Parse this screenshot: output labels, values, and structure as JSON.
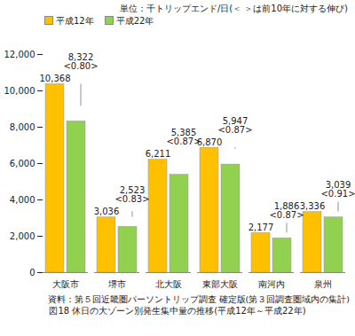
{
  "chart_data": {
    "type": "bar",
    "title": "図18 休日の大ゾーン別発生集中量の推移(平成12年～平成22年)",
    "subtitle": "単位：千トリップエンド/日(＜ ＞は前10年に対する伸び)",
    "caption": "資料：第５回近畿圏パーソントリップ調査 確定版(第３回調査圏域内の集計)",
    "categories": [
      "大阪市",
      "堺市",
      "北大阪",
      "東部大阪",
      "南河内",
      "泉州"
    ],
    "series": [
      {
        "name": "平成12年",
        "color": "#FFC000",
        "values": [
          10368,
          3036,
          6211,
          6870,
          2177,
          3336
        ],
        "value_labels": [
          "10,368",
          "3,036",
          "6,211",
          "6,870",
          "2,177",
          "3,336"
        ]
      },
      {
        "name": "平成22年",
        "color": "#92D050",
        "values": [
          8322,
          2523,
          5385,
          5947,
          1886,
          3039
        ],
        "value_labels": [
          "8,322",
          "2,523",
          "5,385",
          "5,947",
          "1,886",
          "3,039"
        ],
        "growth_labels": [
          "<0.80>",
          "<0.83>",
          "<0.87>",
          "<0.87>",
          "<0.87>",
          "<0.91>"
        ]
      }
    ],
    "ylim": [
      0,
      12000
    ],
    "yticks": [
      0,
      {
        "value": 2000,
        "label": "2,000"
      },
      {
        "value": 4000,
        "label": "4,000"
      },
      {
        "value": 6000,
        "label": "6,000"
      },
      {
        "value": 8000,
        "label": "8,000"
      },
      {
        "value": 10000,
        "label": "10,000"
      },
      {
        "value": 12000,
        "label": "12,000"
      }
    ],
    "grid": false,
    "legend": "top-left",
    "data_labels": true
  }
}
